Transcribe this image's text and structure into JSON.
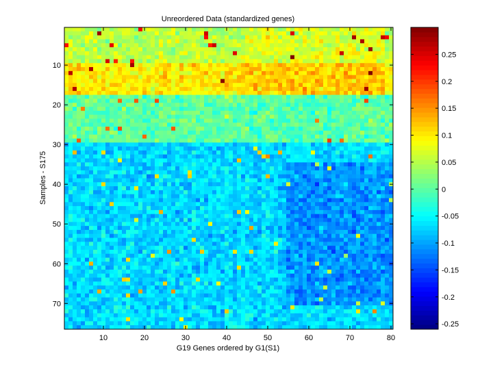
{
  "chart_data": {
    "type": "heatmap",
    "title": "Unreordered Data (standardized genes)",
    "xlabel": "G19 Genes ordered by G1(S1)",
    "ylabel": "Samples - S175",
    "x_range": [
      1,
      80
    ],
    "y_range": [
      1,
      76
    ],
    "x_ticks": [
      10,
      20,
      30,
      40,
      50,
      60,
      70,
      80
    ],
    "y_ticks": [
      10,
      20,
      30,
      40,
      50,
      60,
      70
    ],
    "y_direction": "top-to-bottom",
    "colormap": "jet",
    "color_range": [
      -0.26,
      0.3
    ],
    "colorbar_ticks": [
      -0.25,
      -0.2,
      -0.15,
      -0.1,
      -0.05,
      0,
      0.05,
      0.1,
      0.15,
      0.2,
      0.25
    ],
    "colorbar_labels": [
      "-0.25",
      "-0.2",
      "-0.15",
      "-0.1",
      "-0.05",
      "0",
      "0.05",
      "0.1",
      "0.15",
      "0.2",
      "0.25"
    ],
    "value_structure": {
      "row_bands": [
        {
          "rows": [
            1,
            9
          ],
          "mean_value": 0.05
        },
        {
          "rows": [
            10,
            17
          ],
          "mean_value": 0.1
        },
        {
          "rows": [
            18,
            29
          ],
          "mean_value": 0.0
        },
        {
          "rows": [
            30,
            76
          ],
          "mean_value": -0.07
        }
      ],
      "notes": "upper rows (1-29) warm/positive, lower rows (30-76) cool/negative; darker blue cluster near columns 55-80, rows 35-70"
    }
  }
}
